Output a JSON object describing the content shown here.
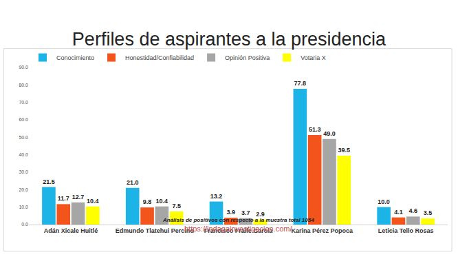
{
  "chart_data": {
    "type": "bar",
    "title": "Perfiles de aspirantes a la presidencia",
    "annotations": [
      "https://indagainvestigacion.com/",
      "Análisis de positivos con respecto a la muestra total 1054"
    ],
    "categories": [
      "Adán Xicale Huitlé",
      "Edmundo Tlatehui Percino",
      "Francisco Fraile García",
      "Karina Pérez Popoca",
      "Leticia Tello Rosas"
    ],
    "series": [
      {
        "name": "Conocimiento",
        "color": "#1cb3e6",
        "values": [
          21.5,
          21.0,
          13.2,
          77.8,
          10.0
        ],
        "value_labels": [
          "21.5",
          "21.0",
          "13.2",
          "77.8",
          "10.0"
        ]
      },
      {
        "name": "Honestidad/Confiabilidad",
        "color": "#f2541b",
        "values": [
          11.7,
          9.8,
          3.9,
          51.3,
          4.1
        ],
        "value_labels": [
          "11.7",
          "9.8",
          "3.9",
          "51.3",
          "4.1"
        ]
      },
      {
        "name": "Opinión Positiva",
        "color": "#a6a6a6",
        "values": [
          12.7,
          10.4,
          3.7,
          49.0,
          4.6
        ],
        "value_labels": [
          "12.7",
          "10.4",
          "3.7",
          "49.0",
          "4.6"
        ]
      },
      {
        "name": "Votaria X",
        "color": "#ffff00",
        "values": [
          10.4,
          7.5,
          2.9,
          39.5,
          3.5
        ],
        "value_labels": [
          "10.4",
          "7.5",
          "2.9",
          "39.5",
          "3.5"
        ]
      }
    ],
    "ylim": [
      0,
      90
    ],
    "yticks": [
      {
        "value": 0,
        "label": "0.0"
      },
      {
        "value": 10,
        "label": "10.0"
      },
      {
        "value": 20,
        "label": "20.0"
      },
      {
        "value": 30,
        "label": "30.0"
      },
      {
        "value": 40,
        "label": "40.0"
      },
      {
        "value": 50,
        "label": "50.0"
      },
      {
        "value": 60,
        "label": "60.0"
      },
      {
        "value": 70,
        "label": "70.0"
      },
      {
        "value": 80,
        "label": "80.0"
      },
      {
        "value": 90,
        "label": "90.0"
      }
    ],
    "grid": false,
    "legend": "top-left",
    "data_labels": true
  }
}
